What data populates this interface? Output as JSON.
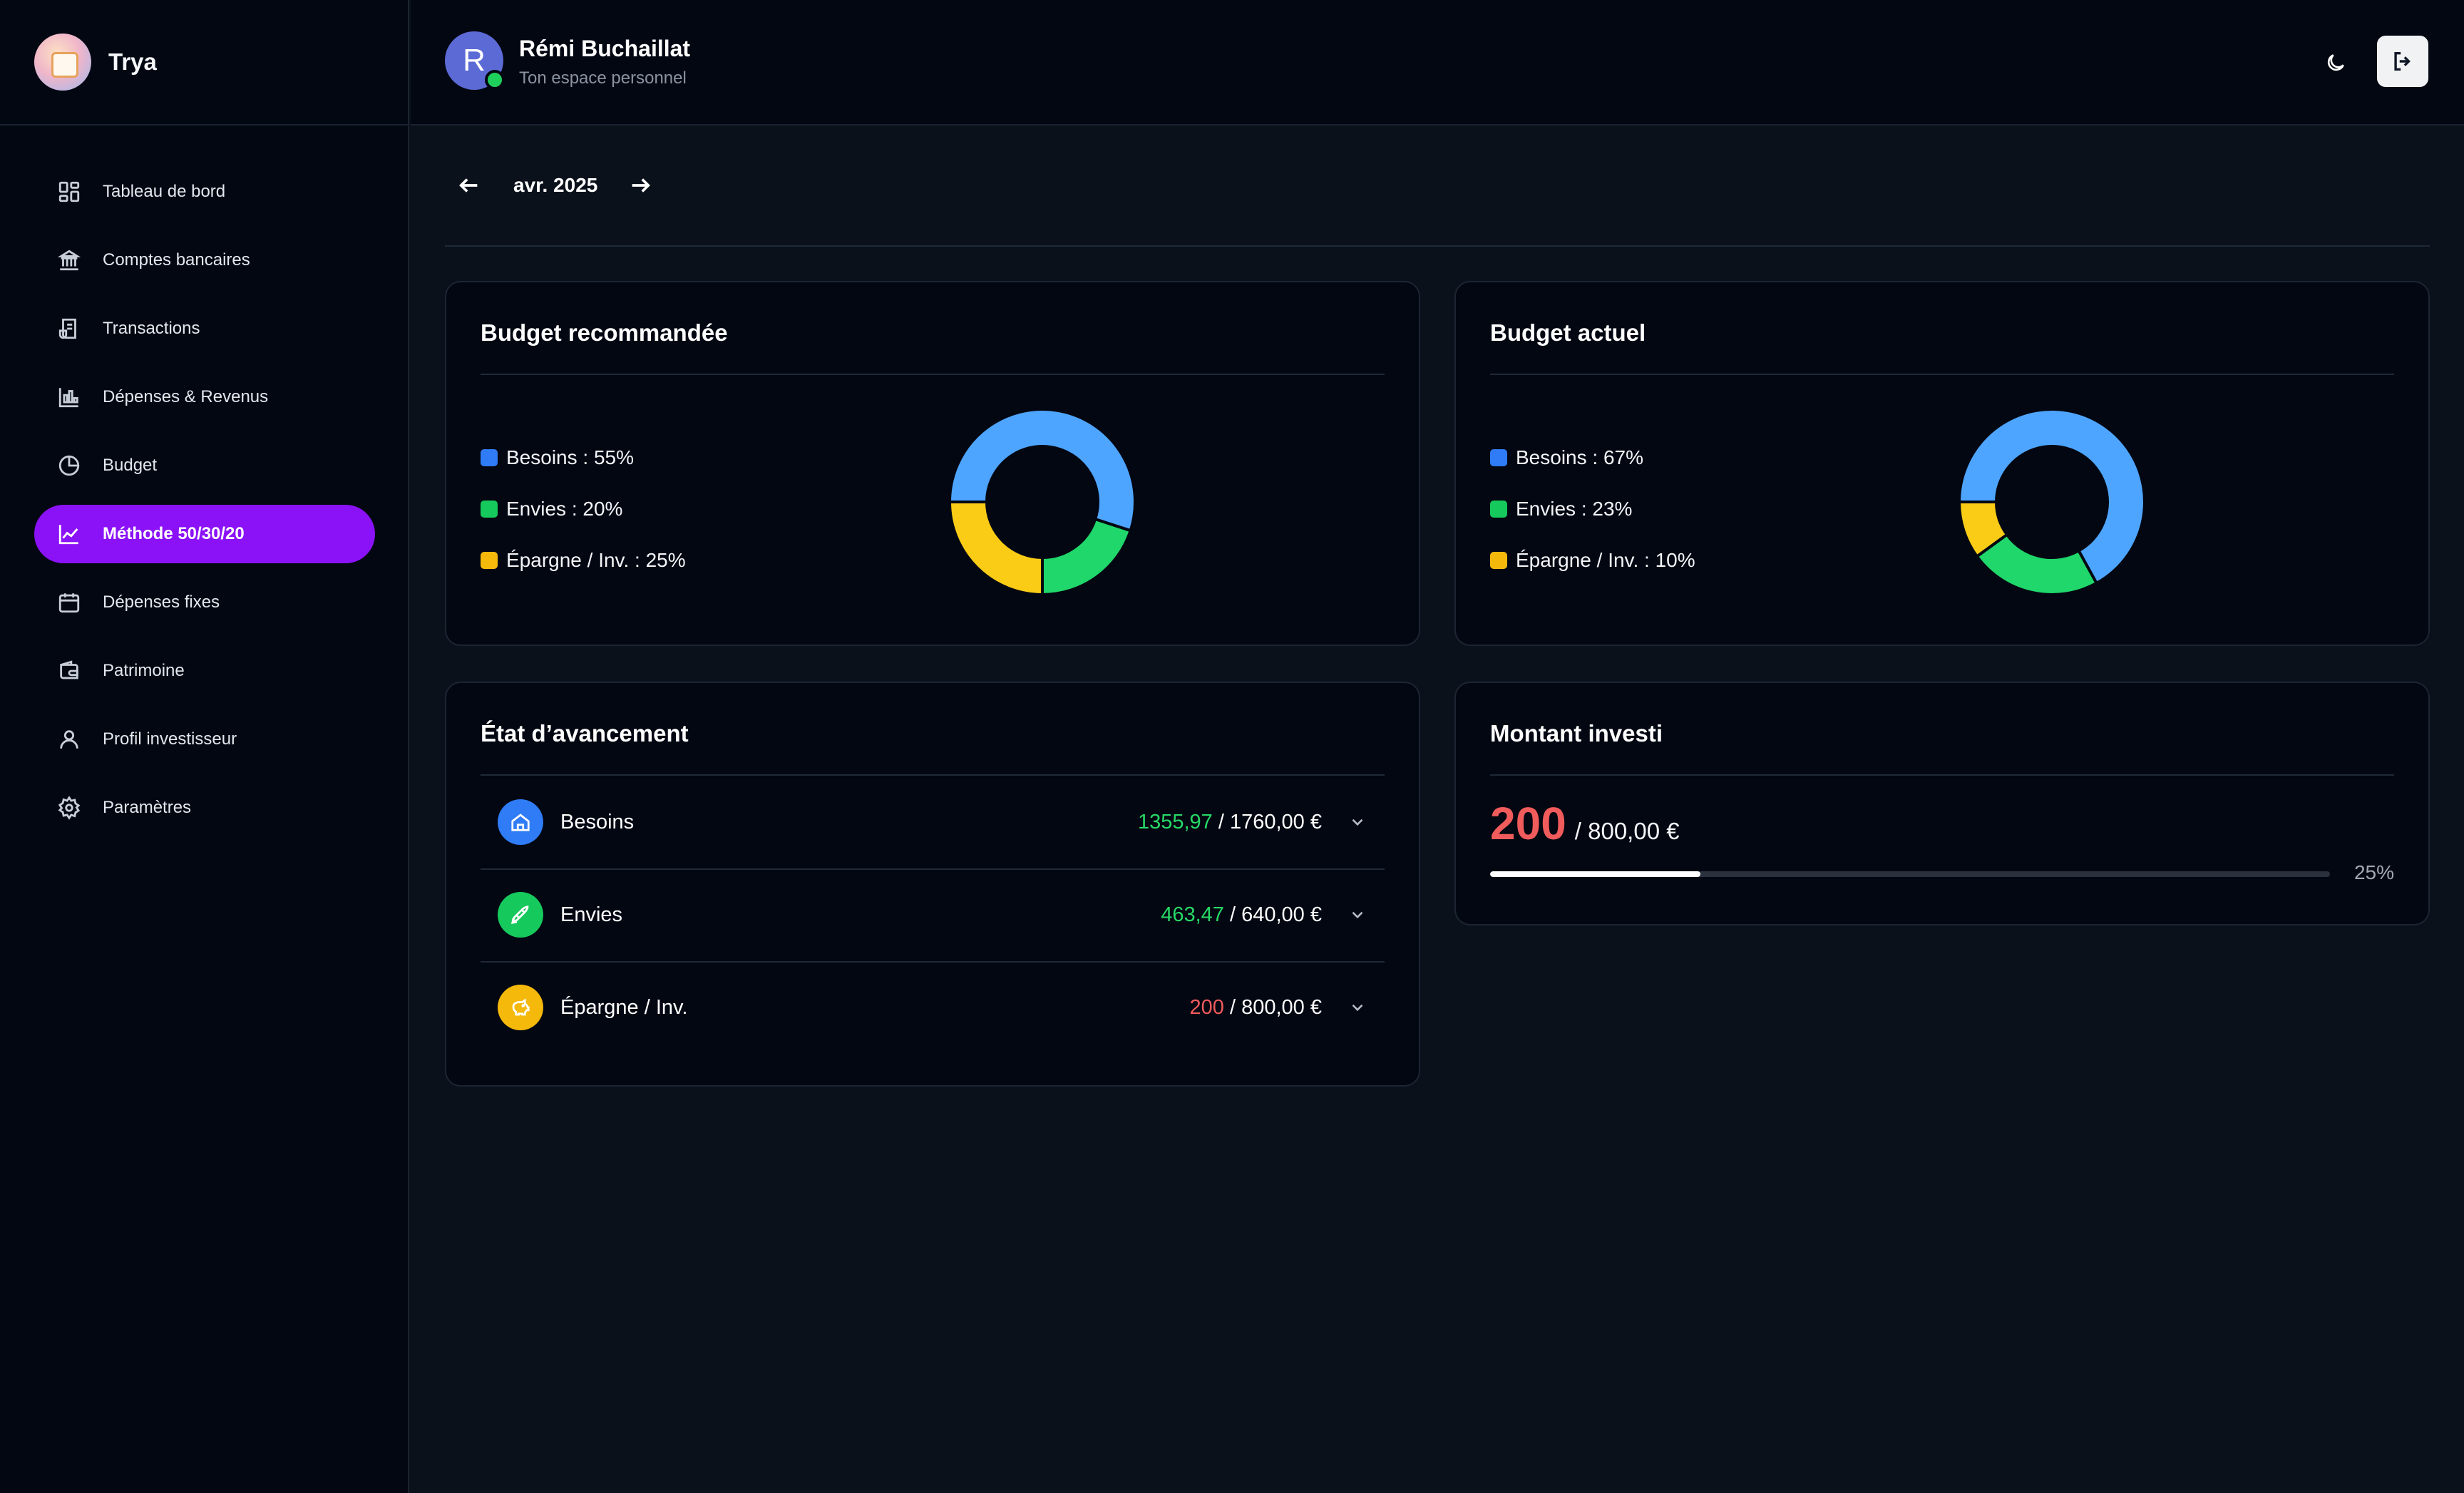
{
  "app": {
    "name": "Trya"
  },
  "user": {
    "initial": "R",
    "name": "Rémi Buchaillat",
    "subtitle": "Ton espace personnel"
  },
  "sidebar": {
    "items": [
      {
        "label": "Tableau de bord",
        "icon": "dashboard-icon",
        "active": false
      },
      {
        "label": "Comptes bancaires",
        "icon": "bank-icon",
        "active": false
      },
      {
        "label": "Transactions",
        "icon": "receipt-icon",
        "active": false
      },
      {
        "label": "Dépenses & Revenus",
        "icon": "bar-chart-icon",
        "active": false
      },
      {
        "label": "Budget",
        "icon": "pie-chart-icon",
        "active": false
      },
      {
        "label": "Méthode 50/30/20",
        "icon": "line-chart-icon",
        "active": true
      },
      {
        "label": "Dépenses fixes",
        "icon": "calendar-icon",
        "active": false
      },
      {
        "label": "Patrimoine",
        "icon": "wallet-icon",
        "active": false
      },
      {
        "label": "Profil investisseur",
        "icon": "user-icon",
        "active": false
      },
      {
        "label": "Paramètres",
        "icon": "gear-icon",
        "active": false
      }
    ]
  },
  "header": {
    "theme_icon": "moon-icon",
    "logout_icon": "logout-icon"
  },
  "month_nav": {
    "label": "avr. 2025",
    "prev_icon": "arrow-left-icon",
    "next_icon": "arrow-right-icon"
  },
  "colors": {
    "besoins": "#4ea5ff",
    "envies": "#1fd76a",
    "epargne": "#facc15",
    "legend_besoins": "#2f7cf6",
    "legend_envies": "#16c95c",
    "legend_epargne": "#f5b90b",
    "accent": "#8b12f7",
    "over_budget": "#f05b5b",
    "under_budget": "#27d866"
  },
  "budget_recommended": {
    "title": "Budget recommandée",
    "legend": [
      "Besoins : 55%",
      "Envies : 20%",
      "Épargne / Inv. : 25%"
    ]
  },
  "budget_current": {
    "title": "Budget actuel",
    "legend": [
      "Besoins : 67%",
      "Envies : 23%",
      "Épargne / Inv. : 10%"
    ]
  },
  "chart_data": [
    {
      "type": "pie",
      "categories": [
        "Besoins",
        "Envies",
        "Épargne / Inv."
      ],
      "values": [
        55,
        20,
        25
      ]
    },
    {
      "type": "pie",
      "categories": [
        "Besoins",
        "Envies",
        "Épargne / Inv."
      ],
      "values": [
        67,
        23,
        10
      ]
    }
  ],
  "progress": {
    "title": "État d’avancement",
    "rows": [
      {
        "label": "Besoins",
        "spent": "1355,97",
        "total": " / 1760,00 €",
        "icon": "home-icon",
        "color": "#2f7cf6",
        "status": "under"
      },
      {
        "label": "Envies",
        "spent": "463,47",
        "total": " / 640,00 €",
        "icon": "rocket-icon",
        "color": "#16c95c",
        "status": "under"
      },
      {
        "label": "Épargne / Inv.",
        "spent": "200",
        "total": " / 800,00 €",
        "icon": "piggy-bank-icon",
        "color": "#f5b90b",
        "status": "over"
      }
    ]
  },
  "invested": {
    "title": "Montant investi",
    "amount": "200",
    "total": "/ 800,00 €",
    "percent_label": "25%",
    "progress": 0.25
  }
}
